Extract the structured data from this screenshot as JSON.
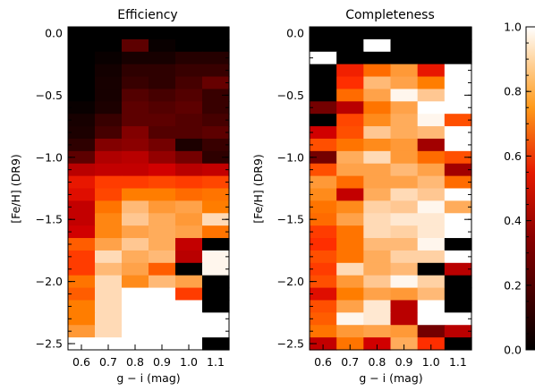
{
  "chart_data": [
    {
      "type": "heatmap",
      "title": "Efficiency",
      "xlabel": "g − i (mag)",
      "ylabel": "[Fe/H] (DR9)",
      "x_ticks": [
        "0.6",
        "0.7",
        "0.8",
        "0.9",
        "1.0",
        "1.1"
      ],
      "y_ticks": [
        "0.0",
        "−0.5",
        "−1.0",
        "−1.5",
        "−2.0",
        "−2.5"
      ],
      "xlim": [
        0.55,
        1.15
      ],
      "ylim": [
        -2.55,
        0.05
      ],
      "cell_width": 0.1,
      "cell_height": 0.1,
      "row_centers": [
        0.0,
        -0.1,
        -0.2,
        -0.3,
        -0.4,
        -0.5,
        -0.6,
        -0.7,
        -0.8,
        -0.9,
        -1.0,
        -1.1,
        -1.2,
        -1.3,
        -1.4,
        -1.5,
        -1.6,
        -1.7,
        -1.8,
        -1.9,
        -2.0,
        -2.1,
        -2.2,
        -2.3,
        -2.4,
        -2.5
      ],
      "col_centers": [
        0.6,
        0.7,
        0.8,
        0.9,
        1.0,
        1.1
      ],
      "values": [
        [
          0.0,
          0.0,
          0.0,
          0.0,
          0.0,
          0.0
        ],
        [
          0.0,
          0.0,
          0.2,
          0.02,
          0.0,
          0.0
        ],
        [
          0.0,
          0.02,
          0.05,
          0.05,
          0.08,
          0.08
        ],
        [
          0.0,
          0.04,
          0.1,
          0.1,
          0.12,
          0.12
        ],
        [
          0.0,
          0.05,
          0.12,
          0.1,
          0.15,
          0.22
        ],
        [
          0.0,
          0.05,
          0.18,
          0.15,
          0.18,
          0.12
        ],
        [
          0.02,
          0.06,
          0.2,
          0.18,
          0.2,
          0.12
        ],
        [
          0.05,
          0.12,
          0.2,
          0.2,
          0.18,
          0.15
        ],
        [
          0.06,
          0.15,
          0.28,
          0.18,
          0.18,
          0.2
        ],
        [
          0.1,
          0.28,
          0.3,
          0.25,
          0.06,
          0.12
        ],
        [
          0.2,
          0.38,
          0.4,
          0.32,
          0.25,
          0.1
        ],
        [
          0.4,
          0.42,
          0.42,
          0.45,
          0.4,
          0.42
        ],
        [
          0.5,
          0.58,
          0.58,
          0.6,
          0.58,
          0.6
        ],
        [
          0.48,
          0.6,
          0.72,
          0.72,
          0.68,
          0.7
        ],
        [
          0.42,
          0.7,
          0.85,
          0.78,
          0.8,
          0.72
        ],
        [
          0.42,
          0.74,
          0.88,
          0.82,
          0.78,
          0.92
        ],
        [
          0.45,
          0.74,
          0.8,
          0.82,
          0.8,
          0.7
        ],
        [
          0.65,
          0.8,
          0.88,
          0.82,
          0.42,
          0.0
        ],
        [
          0.58,
          0.92,
          0.82,
          0.85,
          0.4,
          0.98
        ],
        [
          0.58,
          0.85,
          0.8,
          0.65,
          0.0,
          0.98
        ],
        [
          0.7,
          0.92,
          0.75,
          0.85,
          0.8,
          0.0
        ],
        [
          0.65,
          0.92,
          1.0,
          1.0,
          0.58,
          0.0
        ],
        [
          0.72,
          0.92,
          1.0,
          1.0,
          1.0,
          0.0
        ],
        [
          0.72,
          0.92,
          1.0,
          1.0,
          1.0,
          1.0
        ],
        [
          0.78,
          0.92,
          1.0,
          1.0,
          1.0,
          1.0
        ],
        [
          1.0,
          1.0,
          1.0,
          1.0,
          1.0,
          0.0
        ]
      ]
    },
    {
      "type": "heatmap",
      "title": "Completeness",
      "xlabel": "g − i (mag)",
      "ylabel": "[Fe/H] (DR9)",
      "x_ticks": [
        "0.6",
        "0.7",
        "0.8",
        "0.9",
        "1.0",
        "1.1"
      ],
      "y_ticks": [
        "0.0",
        "−0.5",
        "−1.0",
        "−1.5",
        "−2.0",
        "−2.5"
      ],
      "xlim": [
        0.55,
        1.15
      ],
      "ylim": [
        -2.55,
        0.05
      ],
      "cell_width": 0.1,
      "cell_height": 0.1,
      "row_centers": [
        0.0,
        -0.1,
        -0.2,
        -0.3,
        -0.4,
        -0.5,
        -0.6,
        -0.7,
        -0.8,
        -0.9,
        -1.0,
        -1.1,
        -1.2,
        -1.3,
        -1.4,
        -1.5,
        -1.6,
        -1.7,
        -1.8,
        -1.9,
        -2.0,
        -2.1,
        -2.2,
        -2.3,
        -2.4,
        -2.5
      ],
      "col_centers": [
        0.6,
        0.7,
        0.8,
        0.9,
        1.0,
        1.1
      ],
      "values": [
        [
          0.0,
          0.0,
          0.0,
          0.0,
          0.0,
          0.0
        ],
        [
          0.0,
          0.0,
          1.0,
          0.0,
          0.0,
          0.0
        ],
        [
          1.0,
          0.0,
          0.0,
          0.0,
          0.0,
          0.0
        ],
        [
          0.0,
          0.52,
          0.68,
          0.78,
          0.5,
          1.0
        ],
        [
          0.0,
          0.55,
          0.85,
          0.8,
          0.72,
          1.0
        ],
        [
          0.0,
          0.68,
          0.8,
          0.98,
          0.88,
          1.0
        ],
        [
          0.25,
          0.4,
          0.7,
          0.8,
          1.0,
          1.0
        ],
        [
          0.0,
          0.6,
          0.75,
          0.82,
          0.98,
          0.62
        ],
        [
          0.45,
          0.62,
          0.88,
          0.82,
          0.85,
          1.0
        ],
        [
          0.62,
          0.7,
          0.75,
          0.78,
          0.35,
          1.0
        ],
        [
          0.25,
          0.82,
          0.92,
          0.78,
          0.68,
          0.62
        ],
        [
          0.62,
          0.8,
          0.8,
          0.85,
          0.8,
          0.35
        ],
        [
          0.78,
          0.68,
          0.8,
          0.8,
          0.85,
          0.68
        ],
        [
          0.75,
          0.42,
          0.82,
          0.92,
          0.88,
          1.0
        ],
        [
          0.7,
          0.75,
          0.9,
          0.88,
          0.98,
          0.82
        ],
        [
          0.68,
          0.8,
          0.92,
          0.95,
          0.95,
          1.0
        ],
        [
          0.58,
          0.7,
          0.92,
          0.9,
          0.95,
          1.0
        ],
        [
          0.55,
          0.7,
          0.85,
          0.85,
          0.98,
          0.0
        ],
        [
          0.62,
          0.7,
          0.82,
          0.9,
          0.9,
          1.0
        ],
        [
          0.58,
          0.92,
          0.82,
          0.85,
          0.0,
          0.4
        ],
        [
          0.62,
          0.78,
          0.88,
          0.98,
          0.9,
          0.0
        ],
        [
          0.48,
          0.72,
          0.8,
          0.78,
          0.85,
          0.0
        ],
        [
          0.62,
          0.8,
          0.95,
          0.4,
          1.0,
          0.0
        ],
        [
          0.65,
          0.98,
          0.95,
          0.4,
          1.0,
          1.0
        ],
        [
          0.7,
          0.78,
          0.8,
          0.78,
          0.25,
          0.4
        ],
        [
          0.42,
          0.7,
          0.45,
          0.82,
          0.55,
          0.0
        ]
      ]
    }
  ],
  "colorbar": {
    "colormap": "black-red-orange-white (IDL color table 3)",
    "range": [
      0.0,
      1.0
    ],
    "ticks": [
      "0.0",
      "0.2",
      "0.4",
      "0.6",
      "0.8",
      "1.0"
    ],
    "tick_values": [
      0.0,
      0.2,
      0.4,
      0.6,
      0.8,
      1.0
    ]
  }
}
